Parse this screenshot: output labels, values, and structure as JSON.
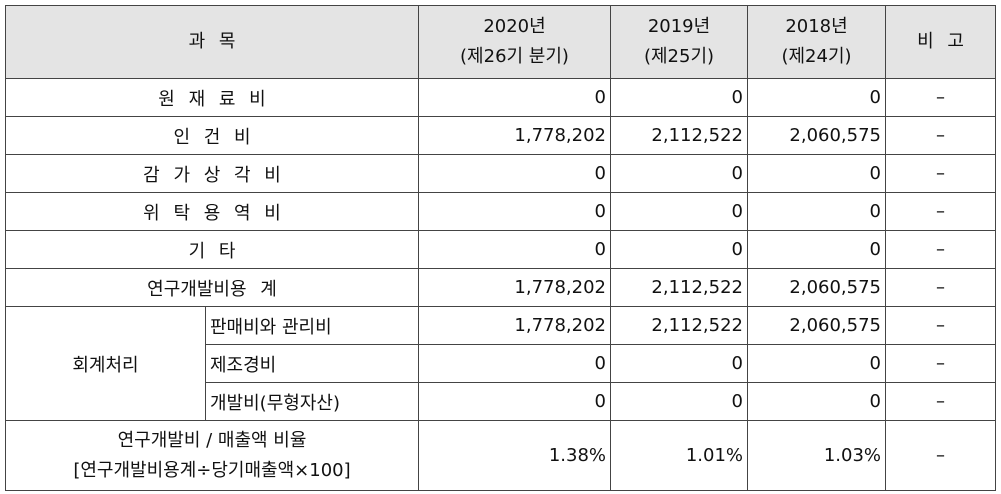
{
  "table": {
    "header": {
      "subject": "과 목",
      "periods": [
        {
          "year": "2020년",
          "term": "(제26기 분기)"
        },
        {
          "year": "2019년",
          "term": "(제25기)"
        },
        {
          "year": "2018년",
          "term": "(제24기)"
        }
      ],
      "note": "비 고"
    },
    "rows": [
      {
        "label": "원 재 료 비",
        "values": [
          "0",
          "0",
          "0"
        ],
        "note": "–"
      },
      {
        "label": "인 건 비",
        "values": [
          "1,778,202",
          "2,112,522",
          "2,060,575"
        ],
        "note": "–"
      },
      {
        "label": "감 가 상 각 비",
        "values": [
          "0",
          "0",
          "0"
        ],
        "note": "–"
      },
      {
        "label": "위 탁 용 역 비",
        "values": [
          "0",
          "0",
          "0"
        ],
        "note": "–"
      },
      {
        "label": "기 타",
        "values": [
          "0",
          "0",
          "0"
        ],
        "note": "–"
      },
      {
        "label": "연구개발비용 계",
        "values": [
          "1,778,202",
          "2,112,522",
          "2,060,575"
        ],
        "note": "–"
      }
    ],
    "accounting": {
      "label": "회계처리",
      "rows": [
        {
          "label": "판매비와 관리비",
          "values": [
            "1,778,202",
            "2,112,522",
            "2,060,575"
          ],
          "note": "–"
        },
        {
          "label": "제조경비",
          "values": [
            "0",
            "0",
            "0"
          ],
          "note": "–"
        },
        {
          "label": "개발비(무형자산)",
          "values": [
            "0",
            "0",
            "0"
          ],
          "note": "–"
        }
      ]
    },
    "ratio": {
      "label": "연구개발비 / 매출액 비율",
      "formula": "[연구개발비용계÷당기매출액×100]",
      "values": [
        "1.38%",
        "1.01%",
        "1.03%"
      ],
      "note": "–"
    }
  }
}
